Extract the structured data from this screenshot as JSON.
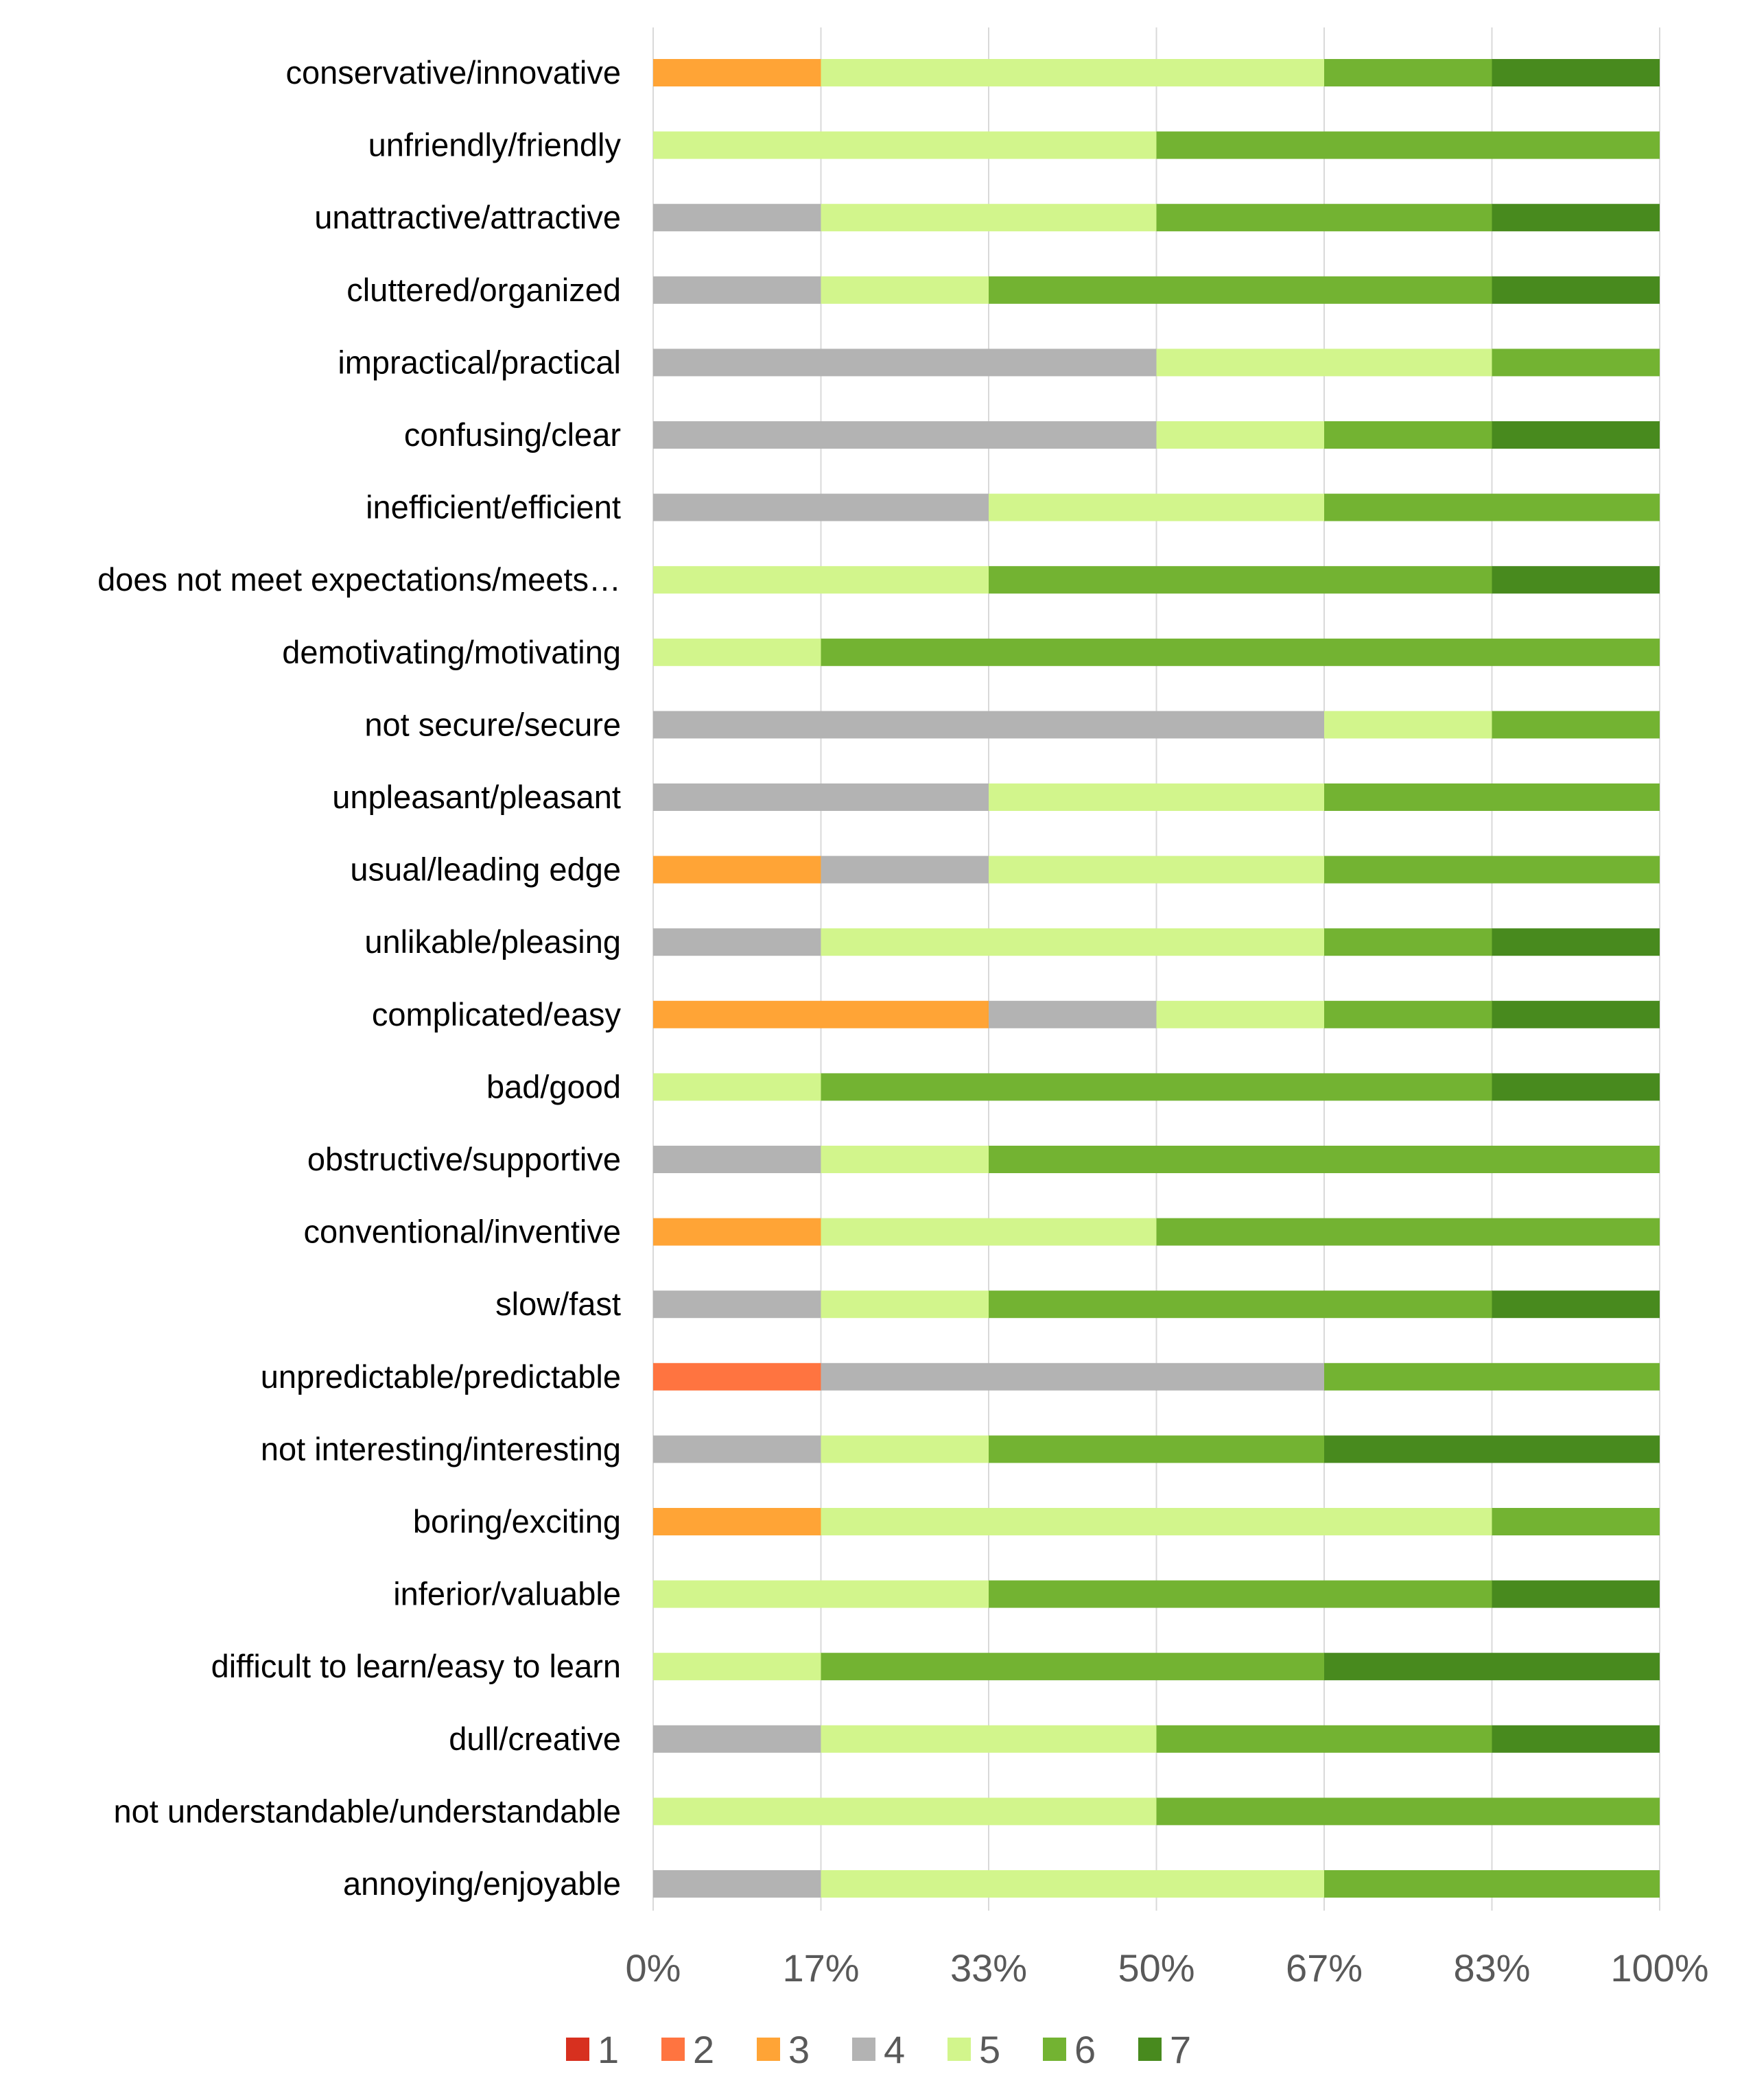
{
  "chart_data": {
    "type": "bar",
    "orientation": "horizontal",
    "stacked": "percent",
    "title": "",
    "xlabel": "",
    "ylabel": "",
    "xlim": [
      0,
      100
    ],
    "grid": true,
    "legend_position": "bottom",
    "x_ticks": [
      "0%",
      "17%",
      "33%",
      "50%",
      "67%",
      "83%",
      "100%"
    ],
    "categories": [
      "conservative/innovative",
      "unfriendly/friendly",
      "unattractive/attractive",
      "cluttered/organized",
      "impractical/practical",
      "confusing/clear",
      "inefficient/efficient",
      "does not meet expectations/meets…",
      "demotivating/motivating",
      "not secure/secure",
      "unpleasant/pleasant",
      "usual/leading edge",
      "unlikable/pleasing",
      "complicated/easy",
      "bad/good",
      "obstructive/supportive",
      "conventional/inventive",
      "slow/fast",
      "unpredictable/predictable",
      "not interesting/interesting",
      "boring/exciting",
      "inferior/valuable",
      "difficult to learn/easy to learn",
      "dull/creative",
      "not understandable/understandable",
      "annoying/enjoyable"
    ],
    "series": [
      {
        "name": "1",
        "color": "#d7301f",
        "values": [
          0,
          0,
          0,
          0,
          0,
          0,
          0,
          0,
          0,
          0,
          0,
          0,
          0,
          0,
          0,
          0,
          0,
          0,
          0,
          0,
          0,
          0,
          0,
          0,
          0,
          0
        ]
      },
      {
        "name": "2",
        "color": "#ff7440",
        "values": [
          0,
          0,
          0,
          0,
          0,
          0,
          0,
          0,
          0,
          0,
          0,
          0,
          0,
          0,
          0,
          0,
          0,
          0,
          1,
          0,
          0,
          0,
          0,
          0,
          0,
          0
        ]
      },
      {
        "name": "3",
        "color": "#ffa436",
        "values": [
          1,
          0,
          0,
          0,
          0,
          0,
          0,
          0,
          0,
          0,
          0,
          1,
          0,
          2,
          0,
          0,
          1,
          0,
          0,
          0,
          1,
          0,
          0,
          0,
          0,
          0
        ]
      },
      {
        "name": "4",
        "color": "#b3b3b3",
        "values": [
          0,
          0,
          1,
          1,
          3,
          3,
          2,
          0,
          0,
          4,
          2,
          1,
          1,
          1,
          0,
          1,
          0,
          1,
          3,
          1,
          0,
          0,
          0,
          1,
          0,
          1
        ]
      },
      {
        "name": "5",
        "color": "#d2f58c",
        "values": [
          3,
          3,
          2,
          1,
          2,
          1,
          2,
          2,
          1,
          1,
          2,
          2,
          3,
          1,
          1,
          1,
          2,
          1,
          0,
          1,
          4,
          2,
          1,
          2,
          3,
          3
        ]
      },
      {
        "name": "6",
        "color": "#73b332",
        "values": [
          1,
          3,
          2,
          3,
          1,
          1,
          2,
          3,
          5,
          1,
          2,
          2,
          1,
          1,
          4,
          4,
          3,
          3,
          2,
          2,
          1,
          3,
          3,
          2,
          3,
          2
        ]
      },
      {
        "name": "7",
        "color": "#488a1e",
        "values": [
          1,
          0,
          1,
          1,
          0,
          1,
          0,
          1,
          0,
          0,
          0,
          0,
          1,
          1,
          1,
          0,
          0,
          1,
          0,
          2,
          0,
          1,
          2,
          1,
          0,
          0
        ]
      }
    ]
  }
}
